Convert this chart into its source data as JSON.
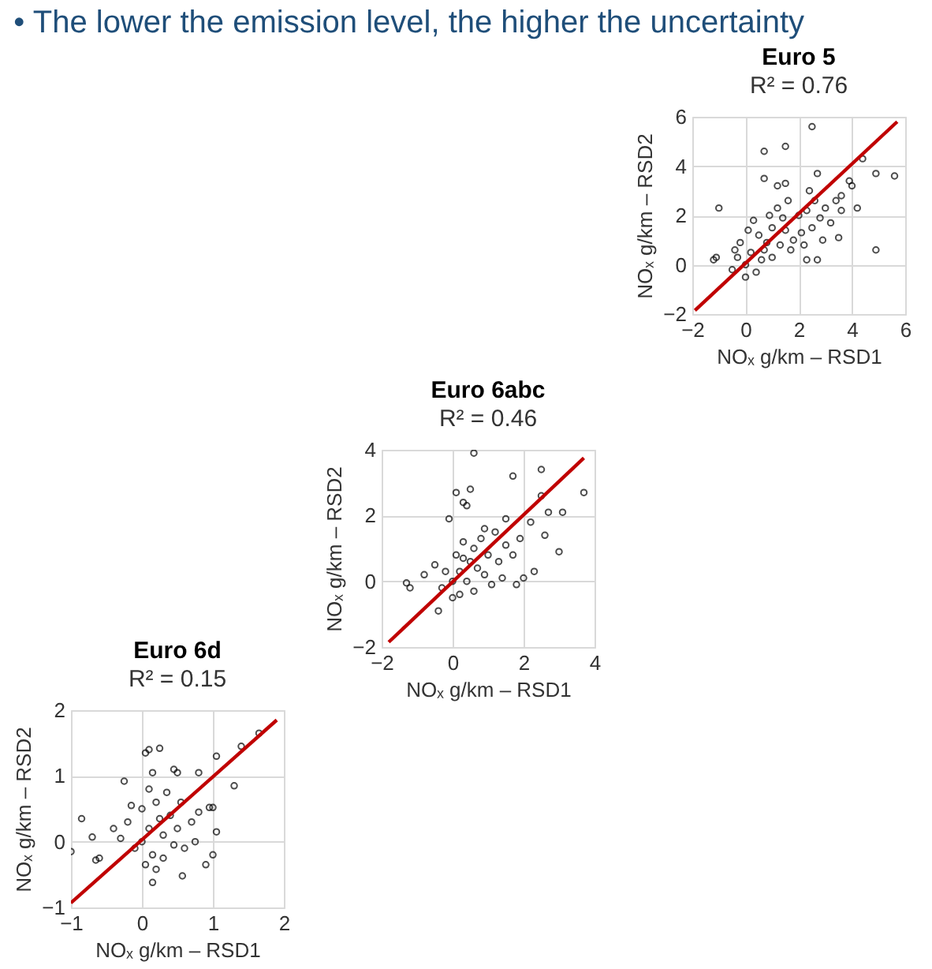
{
  "chart_data": [
    {
      "type": "scatter",
      "title": "Euro 5",
      "subtitle": "R² = 0.76",
      "annotations": [
        "• The lower the emission level, the higher the uncertainty"
      ],
      "xlabel": "NOₓ g/km – RSD1",
      "ylabel": "NOₓ g/km – RSD2",
      "xlim": [
        -2,
        6
      ],
      "ylim": [
        -2,
        6
      ],
      "xticks": [
        -2,
        0,
        2,
        4,
        6
      ],
      "yticks": [
        -2,
        0,
        2,
        4,
        6
      ],
      "grid": true,
      "marker": "circle",
      "series": [
        {
          "color": "#000000",
          "x": [
            2.5,
            0.7,
            1.5,
            4.4,
            4.9,
            5.6,
            -1,
            4.9,
            3.5,
            2.7,
            2.3,
            -1.2,
            -1.1,
            0.7,
            1.5,
            2.7,
            3.9,
            4,
            3.6,
            4.2,
            2.4,
            1.2,
            -0.5,
            -0.3,
            0,
            0,
            0.2,
            0.3,
            0.5,
            0.6,
            0.8,
            1,
            1,
            1.2,
            1.3,
            1.5,
            1.6,
            1.8,
            2,
            2.1,
            2.3,
            2.5,
            2.8,
            3,
            3.2,
            3.4,
            3.6,
            1.7,
            0.4,
            -0.2,
            0.1,
            0.9,
            2.9,
            2.2,
            -0.4,
            0.7,
            1.4,
            2.6
          ],
          "values": [
            5.6,
            4.6,
            4.8,
            4.3,
            3.7,
            3.6,
            2.3,
            0.6,
            1.1,
            0.2,
            0.2,
            0.2,
            0.3,
            3.5,
            3.3,
            3.7,
            3.4,
            3.2,
            2.8,
            2.3,
            3.0,
            3.2,
            -0.2,
            0.3,
            0,
            -0.5,
            0.5,
            1.8,
            1.2,
            0.2,
            0.9,
            1.5,
            0.3,
            2.3,
            0.8,
            1.4,
            2.6,
            1.0,
            2,
            1.3,
            2.2,
            1.5,
            1.9,
            2.3,
            1.7,
            2.6,
            2.2,
            0.6,
            -0.3,
            0.9,
            1.4,
            2.0,
            1.0,
            0.8,
            0.6,
            0.6,
            1.9,
            2.6
          ]
        },
        {
          "type": "line",
          "color": "#c00000",
          "marker": "none",
          "x": [
            -1.9,
            5.7
          ],
          "values": [
            -1.85,
            5.8
          ]
        }
      ]
    },
    {
      "type": "scatter",
      "title": "Euro 6abc",
      "subtitle": "R² = 0.46",
      "xlabel": "NOₓ g/km – RSD1",
      "ylabel": "NOₓ g/km – RSD2",
      "xlim": [
        -2,
        4
      ],
      "ylim": [
        -2,
        4
      ],
      "xticks": [
        -2,
        0,
        2,
        4
      ],
      "yticks": [
        -2,
        0,
        2,
        4
      ],
      "grid": true,
      "marker": "circle",
      "series": [
        {
          "color": "#000000",
          "x": [
            0.6,
            2.5,
            1.7,
            3.7,
            0.1,
            0.5,
            0.3,
            0.4,
            2.5,
            3.1,
            2.7,
            -0.1,
            3.0,
            2.3,
            2.0,
            1.8,
            -1.3,
            -1.2,
            -0.8,
            -0.4,
            2.6,
            1.5,
            2.2,
            -0.3,
            -0.2,
            0,
            0,
            0.1,
            0.2,
            0.3,
            0.4,
            0.5,
            0.6,
            0.7,
            0.8,
            0.9,
            1.0,
            1.2,
            1.3,
            1.5,
            1.7,
            1.9,
            0.2,
            -0.5,
            0.6,
            1.1,
            0.3,
            0.9,
            1.4
          ],
          "values": [
            3.9,
            3.4,
            3.2,
            2.7,
            2.7,
            2.8,
            2.4,
            2.3,
            2.6,
            2.1,
            2.1,
            1.9,
            0.9,
            0.3,
            0.1,
            -0.1,
            -0.05,
            -0.2,
            0.2,
            -0.9,
            1.4,
            1.9,
            1.8,
            -0.2,
            0.3,
            0,
            -0.5,
            0.8,
            0.3,
            1.2,
            0.0,
            0.6,
            1.0,
            0.4,
            1.3,
            0.2,
            0.8,
            1.5,
            0.6,
            1.1,
            0.8,
            1.3,
            -0.4,
            0.5,
            -0.3,
            -0.1,
            0.7,
            1.6,
            0.1
          ]
        },
        {
          "type": "line",
          "color": "#c00000",
          "marker": "none",
          "x": [
            -1.8,
            3.7
          ],
          "values": [
            -1.85,
            3.75
          ]
        }
      ]
    },
    {
      "type": "scatter",
      "title": "Euro 6d",
      "subtitle": "R² = 0.15",
      "xlabel": "NOₓ g/km – RSD1",
      "ylabel": "NOₓ g/km – RSD2",
      "xlim": [
        -1,
        2
      ],
      "ylim": [
        -1,
        2
      ],
      "xticks": [
        -1,
        0,
        1,
        2
      ],
      "yticks": [
        -1,
        0,
        1,
        2
      ],
      "grid": true,
      "marker": "circle",
      "series": [
        {
          "color": "#000000",
          "x": [
            0.05,
            0.25,
            0.1,
            1.65,
            1.4,
            1.05,
            1.3,
            0.45,
            0.5,
            0.8,
            0.15,
            -0.25,
            -0.85,
            -0.7,
            -1.0,
            -0.65,
            -0.6,
            0.15,
            0.57,
            1.05,
            1.0,
            0.9,
            1.0,
            0.95,
            0.2,
            -0.3,
            -0.2,
            -0.1,
            0,
            0,
            0.05,
            0.1,
            0.1,
            0.2,
            0.3,
            0.3,
            0.4,
            0.5,
            0.6,
            0.7,
            -0.4,
            0.15,
            0.35,
            0.45,
            0.25,
            -0.15,
            0.55,
            0.75,
            0.8
          ],
          "values": [
            1.35,
            1.42,
            1.4,
            1.65,
            1.45,
            1.3,
            0.85,
            1.1,
            1.05,
            1.05,
            1.05,
            0.92,
            0.35,
            0.07,
            -0.15,
            -0.28,
            -0.25,
            -0.62,
            -0.52,
            0.15,
            -0.2,
            -0.35,
            0.52,
            0.52,
            -0.42,
            0.05,
            0.3,
            -0.1,
            0,
            0.5,
            -0.35,
            0.2,
            0.8,
            0.6,
            0.1,
            -0.25,
            0.4,
            0.2,
            -0.1,
            0.3,
            0.2,
            -0.2,
            0.75,
            -0.05,
            0.35,
            0.55,
            0.6,
            0.0,
            0.45
          ]
        },
        {
          "type": "line",
          "color": "#c00000",
          "marker": "none",
          "x": [
            -1.0,
            1.9
          ],
          "values": [
            -0.93,
            1.85
          ]
        }
      ]
    }
  ]
}
